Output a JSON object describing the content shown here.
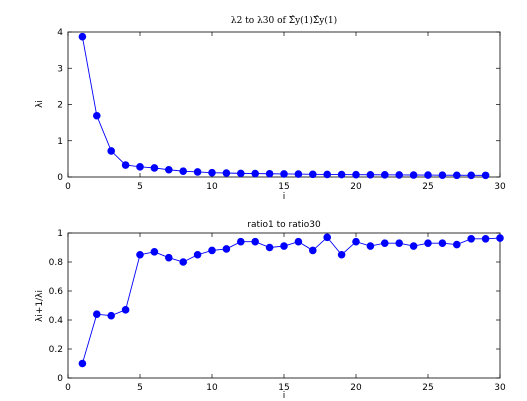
{
  "chart_data": [
    {
      "type": "line",
      "title": "λ2 to λ30 of Σ̂y(1)Σ̂y(1)",
      "xlabel": "i",
      "ylabel": "λi",
      "xlim": [
        0,
        30
      ],
      "ylim": [
        0,
        4
      ],
      "xticks": [
        "0",
        "5",
        "10",
        "15",
        "20",
        "25",
        "30"
      ],
      "yticks": [
        "0",
        "1",
        "2",
        "3",
        "4"
      ],
      "grid": false,
      "color": "#0000ff",
      "x": [
        1,
        2,
        3,
        4,
        5,
        6,
        7,
        8,
        9,
        10,
        11,
        12,
        13,
        14,
        15,
        16,
        17,
        18,
        19,
        20,
        21,
        22,
        23,
        24,
        25,
        26,
        27,
        28,
        29
      ],
      "values": [
        3.87,
        1.69,
        0.72,
        0.33,
        0.28,
        0.25,
        0.2,
        0.16,
        0.14,
        0.12,
        0.11,
        0.1,
        0.095,
        0.09,
        0.085,
        0.08,
        0.075,
        0.07,
        0.068,
        0.065,
        0.062,
        0.06,
        0.058,
        0.055,
        0.053,
        0.05,
        0.048,
        0.046,
        0.045
      ]
    },
    {
      "type": "line",
      "title": "ratio1 to ratio30",
      "xlabel": "i",
      "ylabel": "λi+1/λi",
      "xlim": [
        0,
        30
      ],
      "ylim": [
        0,
        1
      ],
      "xticks": [
        "0",
        "5",
        "10",
        "15",
        "20",
        "25",
        "30"
      ],
      "yticks": [
        "0",
        "0.2",
        "0.4",
        "0.6",
        "0.8",
        "1"
      ],
      "grid": false,
      "color": "#0000ff",
      "x": [
        1,
        2,
        3,
        4,
        5,
        6,
        7,
        8,
        9,
        10,
        11,
        12,
        13,
        14,
        15,
        16,
        17,
        18,
        19,
        20,
        21,
        22,
        23,
        24,
        25,
        26,
        27,
        28,
        29,
        30
      ],
      "values": [
        0.1,
        0.44,
        0.43,
        0.47,
        0.85,
        0.87,
        0.83,
        0.8,
        0.85,
        0.88,
        0.89,
        0.94,
        0.94,
        0.9,
        0.91,
        0.94,
        0.88,
        0.97,
        0.85,
        0.94,
        0.91,
        0.93,
        0.93,
        0.91,
        0.93,
        0.93,
        0.92,
        0.96,
        0.96,
        0.965
      ]
    }
  ]
}
